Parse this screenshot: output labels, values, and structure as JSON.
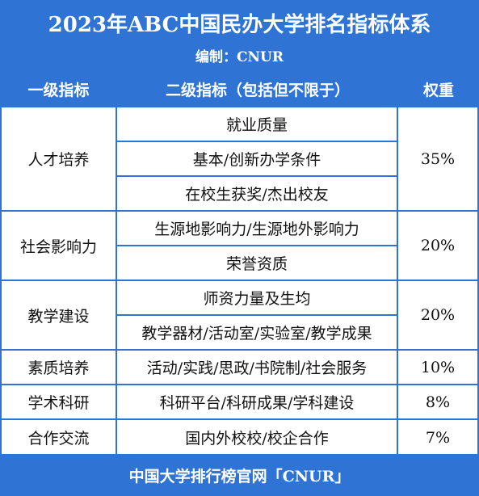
{
  "header": {
    "title": "2023年ABC中国民办大学排名指标体系",
    "subtitle": "编制：CNUR"
  },
  "table": {
    "columns": [
      "一级指标",
      "二级指标（包括但不限于）",
      "权重"
    ],
    "rows": [
      {
        "primary": "人才培养",
        "secondary": [
          "就业质量",
          "基本/创新办学条件",
          "在校生获奖/杰出校友"
        ],
        "weight": "35%"
      },
      {
        "primary": "社会影响力",
        "secondary": [
          "生源地影响力/生源地外影响力",
          "荣誉资质"
        ],
        "weight": "20%"
      },
      {
        "primary": "教学建设",
        "secondary": [
          "师资力量及生均",
          "教学器材/活动室/实验室/教学成果"
        ],
        "weight": "20%"
      },
      {
        "primary": "素质培养",
        "secondary": [
          "活动/实践/思政/书院制/社会服务"
        ],
        "weight": "10%"
      },
      {
        "primary": "学术科研",
        "secondary": [
          "科研平台/科研成果/学科建设"
        ],
        "weight": "8%"
      },
      {
        "primary": "合作交流",
        "secondary": [
          "国内外校校/校企合作"
        ],
        "weight": "7%"
      }
    ]
  },
  "footer": "中国大学排行榜官网「CNUR」"
}
